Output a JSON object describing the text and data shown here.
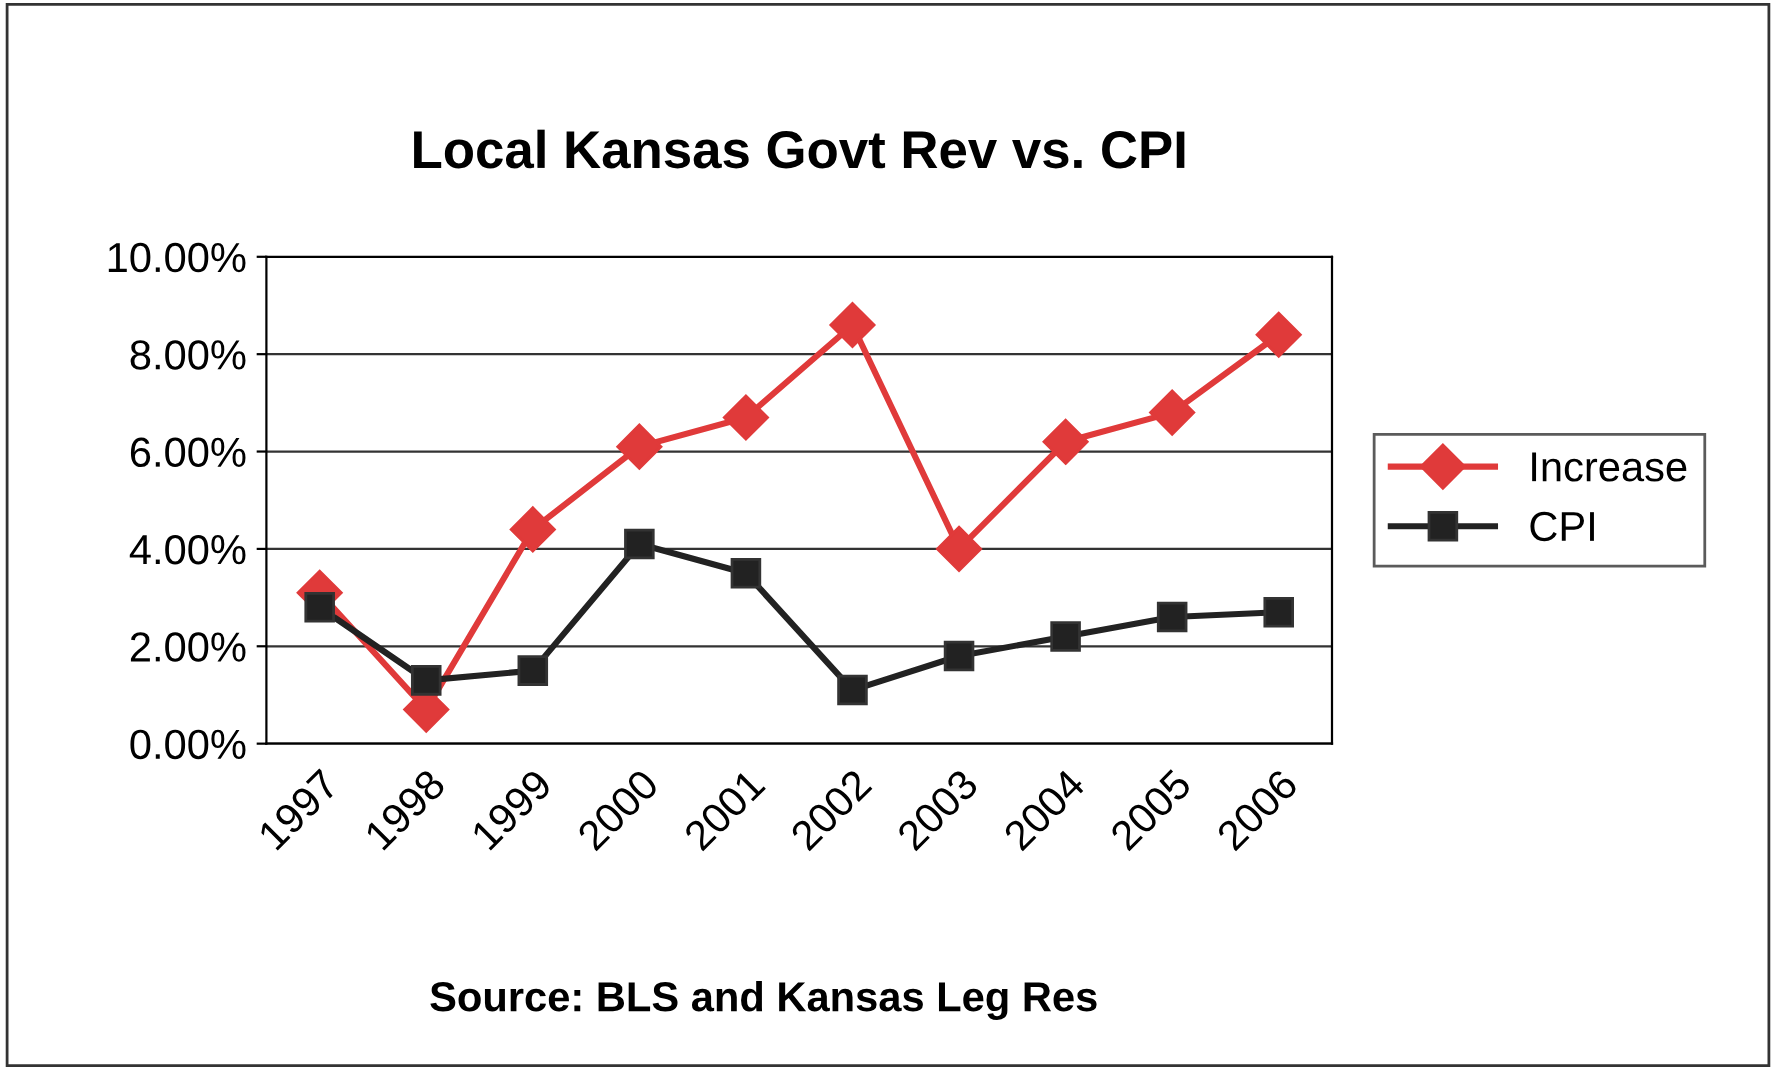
{
  "chart_data": {
    "type": "line",
    "title": "Local Kansas Govt Rev vs. CPI",
    "categories": [
      "1997",
      "1998",
      "1999",
      "2000",
      "2001",
      "2002",
      "2003",
      "2004",
      "2005",
      "2006"
    ],
    "series": [
      {
        "name": "Increase",
        "color": "#e03a3a",
        "marker": "diamond",
        "values": [
          3.1,
          0.7,
          4.4,
          6.1,
          6.7,
          8.6,
          4.0,
          6.2,
          6.8,
          8.4
        ]
      },
      {
        "name": "CPI",
        "color": "#222222",
        "marker": "square",
        "values": [
          2.8,
          1.3,
          1.5,
          4.1,
          3.5,
          1.1,
          1.8,
          2.2,
          2.6,
          2.7
        ]
      }
    ],
    "ylim": [
      0,
      10
    ],
    "yticks": [
      {
        "value": 0,
        "label": "0.00%"
      },
      {
        "value": 2,
        "label": "2.00%"
      },
      {
        "value": 4,
        "label": "4.00%"
      },
      {
        "value": 6,
        "label": "6.00%"
      },
      {
        "value": 8,
        "label": "8.00%"
      },
      {
        "value": 10,
        "label": "10.00%"
      }
    ],
    "grid": "y",
    "legend": "right",
    "annotations": [
      "Source: BLS and Kansas Leg Res"
    ]
  }
}
